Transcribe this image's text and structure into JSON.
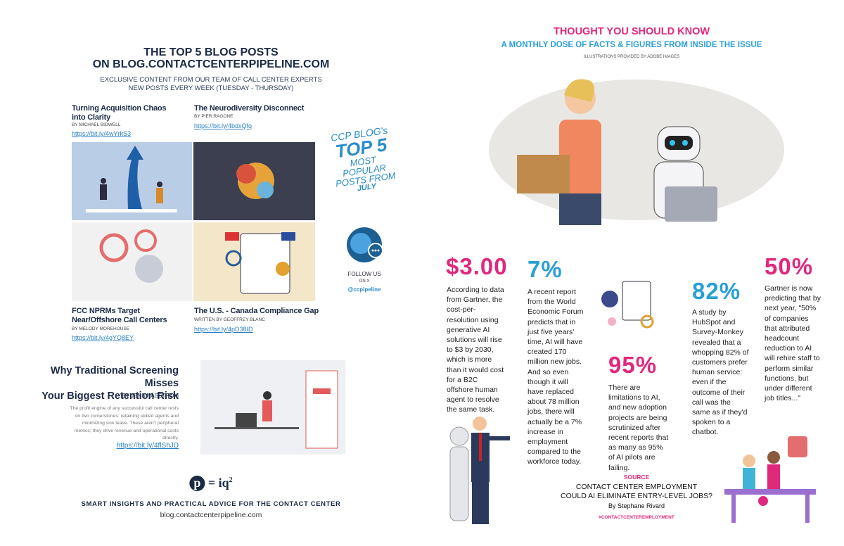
{
  "left": {
    "title_lines": [
      "THE TOP 5 BLOG POSTS",
      "ON BLOG.CONTACTCENTERPIPELINE.COM"
    ],
    "subtitle_lines": [
      "EXCLUSIVE CONTENT FROM OUR TEAM OF CALL CENTER EXPERTS",
      "NEW POSTS EVERY WEEK (TUESDAY - THURSDAY)"
    ],
    "posts": [
      {
        "title": "Turning Acquisition Chaos into Clarity",
        "byline": "BY MICHAEL BIDWELL",
        "link": "https://bit.ly/4wYrkS3"
      },
      {
        "title": "The Neurodiversity Disconnect",
        "byline": "BY PIER RAGONE",
        "link": "https://bit.ly/4bdxQfq"
      },
      {
        "title": "FCC NPRMs Target Near/Offshore Call Centers",
        "byline": "BY MELODY MOREHOUSE",
        "link": "https://bit.ly/4gYQ8EY"
      },
      {
        "title": "The U.S. - Canada Compliance Gap",
        "byline": "WRITTEN BY GEOFFREY BLANC",
        "link": "https://bit.ly/4pD38ID"
      }
    ],
    "badge": [
      "CCP BLOG's",
      "TOP 5",
      "MOST POPULAR",
      "POSTS FROM",
      "JULY"
    ],
    "follow": [
      "FOLLOW US",
      "ON X",
      "@ccpipeline"
    ],
    "feature": {
      "title_lines": [
        "Why Traditional Screening Misses",
        "Your Biggest Retention Risk"
      ],
      "byline": "BY JENS NÄSSTRÖM",
      "body": "The profit engine of any successful call center rests on two cornerstones: retaining skilled agents and minimizing sick leave. These aren't peripheral metrics; they drive revenue and operational costs directly.",
      "link": "https://bit.ly/4flShJD"
    },
    "logo": {
      "mark": "p",
      "text": "= iq",
      "sup": "2"
    },
    "tagline": "SMART INSIGHTS AND PRACTICAL ADVICE FOR THE CONTACT CENTER",
    "url": "blog.contactcenterpipeline.com"
  },
  "right": {
    "title": "THOUGHT YOU SHOULD KNOW",
    "subtitle": "A MONTHLY DOSE OF FACTS & FIGURES FROM INSIDE THE ISSUE",
    "credit": "ILLUSTRATIONS PROVIDED BY ADOBE IMAGES",
    "stats": [
      {
        "value": "$3.00",
        "text": "According to data from Gartner, the cost-per-resolution using generative AI solutions will rise to $3 by 2030, which is more than it would cost for a B2C offshore human agent to resolve the same task."
      },
      {
        "value": "7%",
        "text": "A recent report from the World Economic Forum predicts that in just five years' time, AI will have created 170 million new jobs. And so even though it will have replaced about 78 million jobs, there will actually be a 7% increase in employment compared to the workforce today."
      },
      {
        "value": "95%",
        "text": "There are limitations to AI, and new adoption projects are being scrutinized after recent reports that as many as 95% of AI pilots are failing."
      },
      {
        "value": "82%",
        "text": "A study by HubSpot and Survey-Monkey revealed that a whopping 82% of customers prefer human service: even if the outcome of their call was the same as if they'd spoken to a chatbot."
      },
      {
        "value": "50%",
        "text": "Gartner is now predicting that by next year, \"50% of companies that attributed headcount reduction to AI will rehire staff to perform similar functions, but under different job titles...\""
      }
    ],
    "source": {
      "label": "SOURCE",
      "title_lines": [
        "CONTACT CENTER EMPLOYMENT",
        "COULD AI ELIMINATE ENTRY-LEVEL JOBS?"
      ],
      "byline": "By Stephane Rivard",
      "hashtag": "#CONTACTCENTEREMPLOYMENT"
    }
  }
}
